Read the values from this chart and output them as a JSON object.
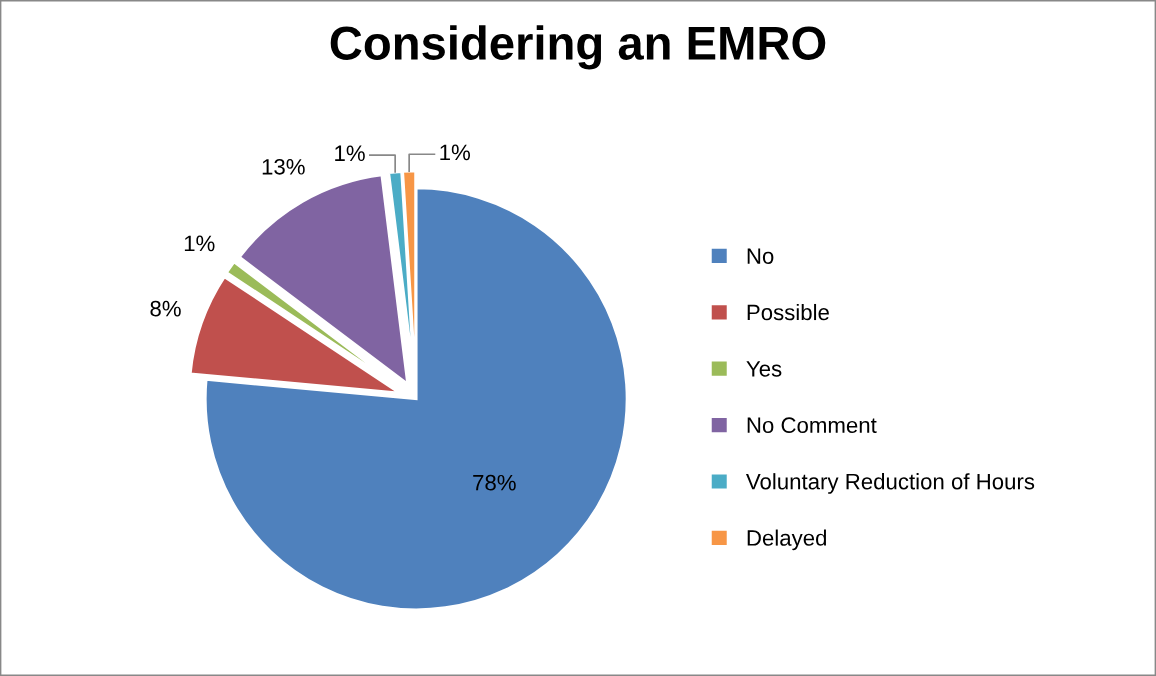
{
  "chart_data": {
    "type": "pie",
    "title": "Considering an EMRO",
    "categories": [
      "No",
      "Possible",
      "Yes",
      "No Comment",
      "Voluntary Reduction of Hours",
      "Delayed"
    ],
    "values": [
      78,
      8,
      1,
      13,
      1,
      1
    ],
    "colors": [
      "#4f81bd",
      "#c0504d",
      "#9bbb59",
      "#8064a2",
      "#4bacc6",
      "#f79646"
    ],
    "value_labels": [
      "78%",
      "8%",
      "1%",
      "13%",
      "1%",
      "1%"
    ],
    "legend": "right"
  }
}
